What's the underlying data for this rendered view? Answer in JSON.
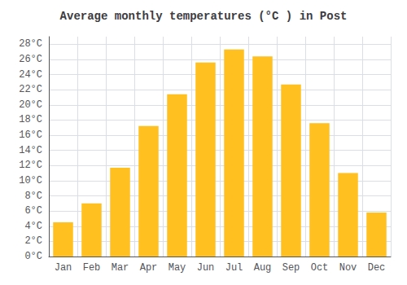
{
  "chart_data": {
    "type": "bar",
    "title": "Average monthly temperatures (°C ) in Post",
    "categories": [
      "Jan",
      "Feb",
      "Mar",
      "Apr",
      "May",
      "Jun",
      "Jul",
      "Aug",
      "Sep",
      "Oct",
      "Nov",
      "Dec"
    ],
    "values": [
      4.5,
      7.0,
      11.7,
      17.2,
      21.4,
      25.6,
      27.3,
      26.4,
      22.7,
      17.6,
      11.0,
      5.8
    ],
    "color": "#FFC020",
    "ylim": [
      0,
      29
    ],
    "yticks": [
      {
        "value": 0,
        "label": "0°C"
      },
      {
        "value": 2,
        "label": "2°C"
      },
      {
        "value": 4,
        "label": "4°C"
      },
      {
        "value": 6,
        "label": "6°C"
      },
      {
        "value": 8,
        "label": "8°C"
      },
      {
        "value": 10,
        "label": "10°C"
      },
      {
        "value": 12,
        "label": "12°C"
      },
      {
        "value": 14,
        "label": "14°C"
      },
      {
        "value": 16,
        "label": "16°C"
      },
      {
        "value": 18,
        "label": "18°C"
      },
      {
        "value": 20,
        "label": "20°C"
      },
      {
        "value": 22,
        "label": "22°C"
      },
      {
        "value": 24,
        "label": "24°C"
      },
      {
        "value": 26,
        "label": "26°C"
      },
      {
        "value": 28,
        "label": "28°C"
      }
    ],
    "grid": true
  }
}
